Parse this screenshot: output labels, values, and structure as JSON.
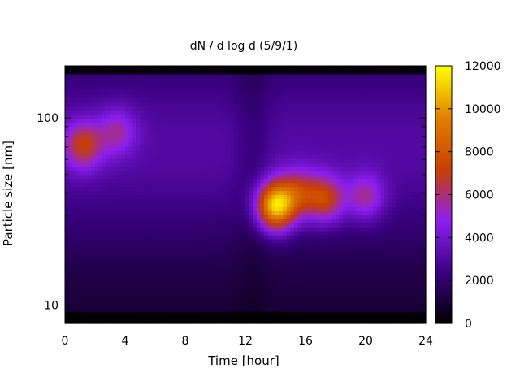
{
  "chart_data": {
    "type": "heatmap",
    "title": "dN / d log d (5/9/1)",
    "xlabel": "Time [hour]",
    "ylabel": "Particle size [nm]",
    "x_range": [
      0,
      24
    ],
    "x_ticks": [
      "0",
      "4",
      "8",
      "12",
      "16",
      "20",
      "24"
    ],
    "y_range": [
      8,
      190
    ],
    "y_scale": "log",
    "y_ticks": [
      "10",
      "100"
    ],
    "colorbar": {
      "range": [
        0,
        12000
      ],
      "ticks": [
        "0",
        "2000",
        "4000",
        "6000",
        "8000",
        "10000",
        "12000"
      ],
      "colormap": [
        "#000000",
        "#3a0080",
        "#8c1ff0",
        "#c84000",
        "#e08000",
        "#ffff00"
      ]
    },
    "background_level": 2500,
    "features": [
      {
        "time": 1.2,
        "size": 72,
        "value": 6500
      },
      {
        "time": 3.5,
        "size": 85,
        "value": 5000
      },
      {
        "time": 14.0,
        "size": 34,
        "value": 11000
      },
      {
        "time": 15.5,
        "size": 40,
        "value": 6000
      },
      {
        "time": 17.3,
        "size": 37,
        "value": 7000
      },
      {
        "time": 20.0,
        "size": 38,
        "value": 5500
      }
    ],
    "grid": false
  }
}
